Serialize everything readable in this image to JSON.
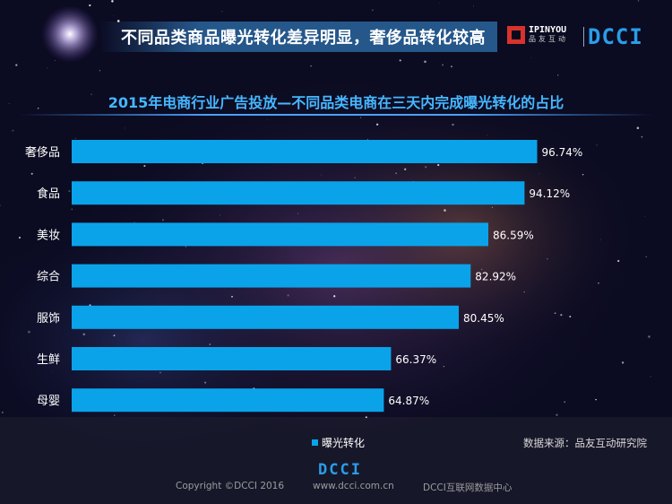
{
  "header": {
    "title": "不同品类商品曝光转化差异明显，奢侈品转化较高",
    "partner_logo_text": "IPINYOU",
    "partner_logo_sub": "品友互动",
    "brand_logo_text": "DCCI"
  },
  "colors": {
    "bar": "#0aa3ea",
    "title": "#46b7ff",
    "brand": "#2a9de8",
    "partner": "#d7332c"
  },
  "chart_data": {
    "type": "bar",
    "orientation": "horizontal",
    "title": "2015年电商行业广告投放—不同品类电商在三天内完成曝光转化的占比",
    "categories": [
      "奢侈品",
      "食品",
      "美妆",
      "综合",
      "服饰",
      "生鲜",
      "母婴"
    ],
    "series": [
      {
        "name": "曝光转化",
        "values": [
          96.74,
          94.12,
          86.59,
          82.92,
          80.45,
          66.37,
          64.87
        ]
      }
    ],
    "value_labels": [
      "96.74%",
      "94.12%",
      "86.59%",
      "82.92%",
      "80.45%",
      "66.37%",
      "64.87%"
    ],
    "xlim": [
      0,
      100
    ],
    "grid": false,
    "legend": "bottom-center"
  },
  "source": "数据来源：品友互动研究院",
  "footer": {
    "logo": "DCCI",
    "copyright": "Copyright ©DCCI 2016",
    "url": "www.dcci.com.cn",
    "org": "DCCI互联网数据中心"
  }
}
